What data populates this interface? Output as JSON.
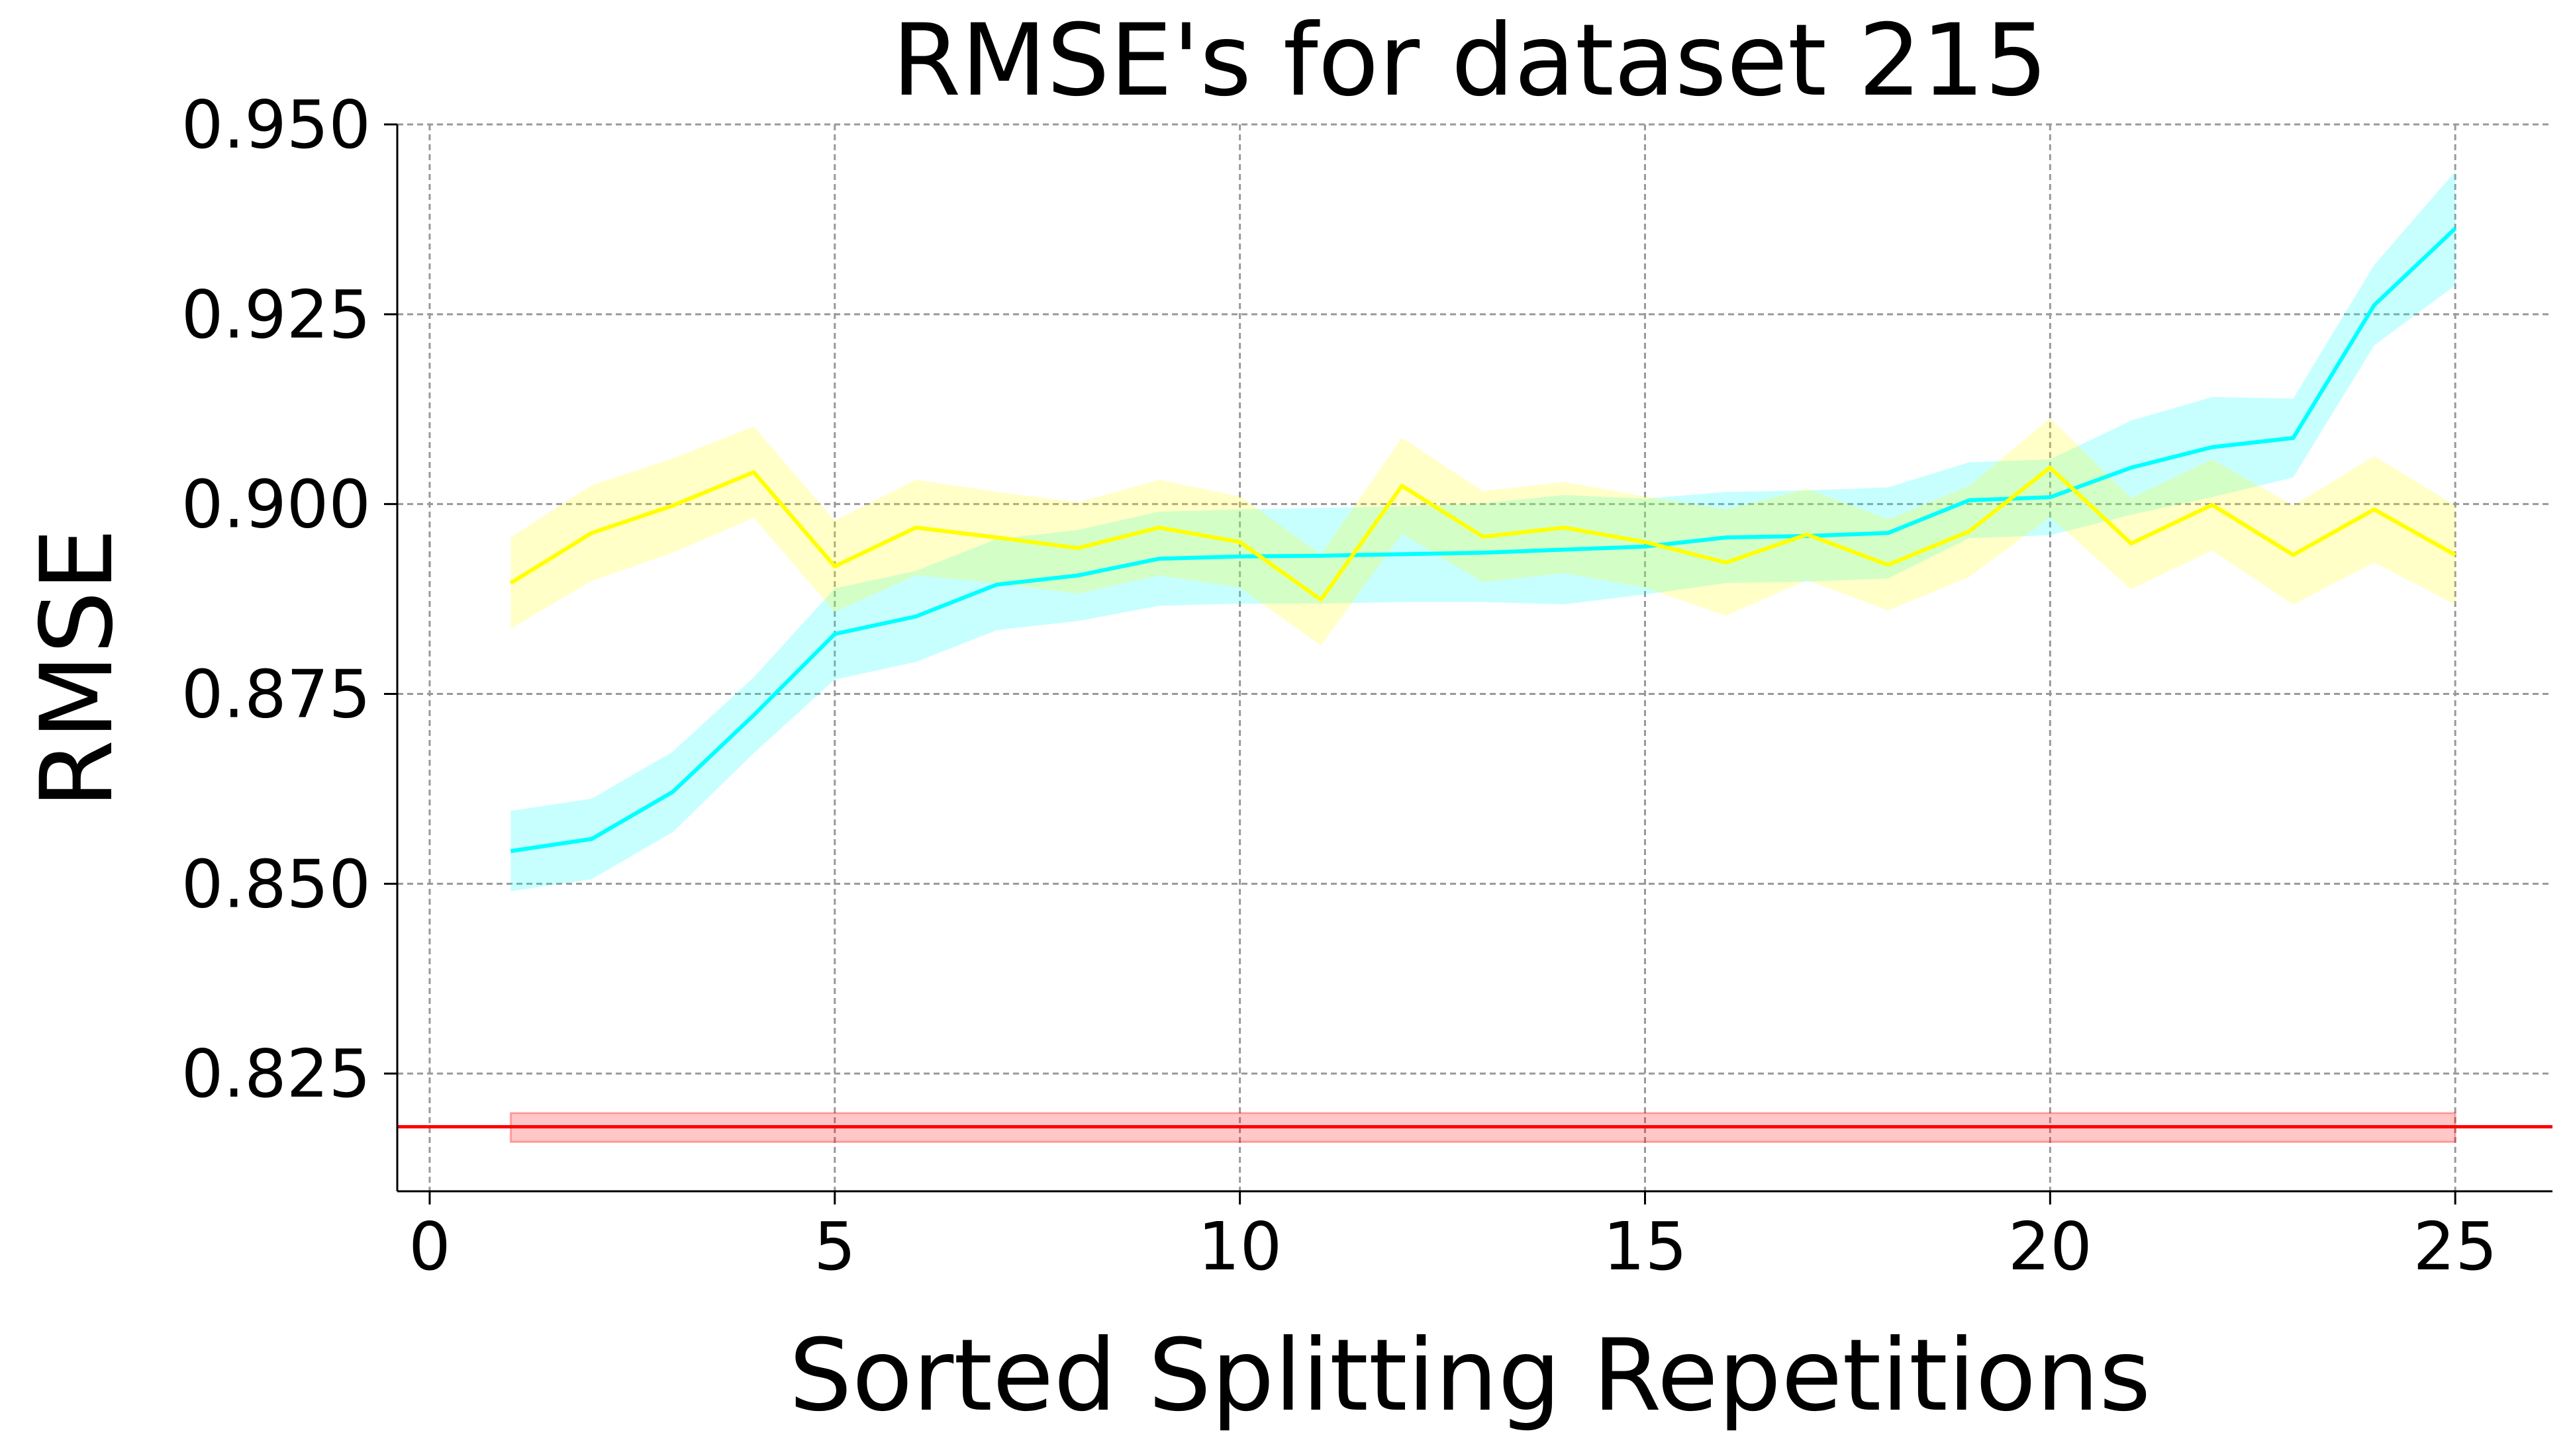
{
  "chart_data": {
    "type": "line",
    "title": "RMSE's for dataset 215",
    "xlabel": "Sorted Splitting Repetitions",
    "ylabel": "RMSE",
    "xlim": [
      -0.4,
      26.2
    ],
    "ylim": [
      0.8095,
      0.95
    ],
    "xticks": [
      0,
      5,
      10,
      15,
      20,
      25
    ],
    "xtick_labels": [
      "0",
      "5",
      "10",
      "15",
      "20",
      "25"
    ],
    "yticks": [
      0.825,
      0.85,
      0.875,
      0.9,
      0.925,
      0.95
    ],
    "ytick_labels": [
      "0.825",
      "0.850",
      "0.875",
      "0.900",
      "0.925",
      "0.950"
    ],
    "grid": true,
    "grid_style": "dashed",
    "x": [
      1,
      2,
      3,
      4,
      5,
      6,
      7,
      8,
      9,
      10,
      11,
      12,
      13,
      14,
      15,
      16,
      17,
      18,
      19,
      20,
      21,
      22,
      23,
      24,
      25
    ],
    "series": [
      {
        "color": "#00ffff",
        "values": [
          0.8543,
          0.8559,
          0.8621,
          0.8722,
          0.8829,
          0.8852,
          0.8894,
          0.8906,
          0.8928,
          0.8931,
          0.8932,
          0.8934,
          0.8936,
          0.894,
          0.8944,
          0.8956,
          0.8958,
          0.8962,
          0.9005,
          0.9009,
          0.9048,
          0.9075,
          0.9087,
          0.9262,
          0.9363
        ],
        "band_lower": [
          0.849,
          0.8506,
          0.8568,
          0.8672,
          0.8769,
          0.8792,
          0.8834,
          0.8846,
          0.8866,
          0.8869,
          0.8869,
          0.8871,
          0.8871,
          0.8868,
          0.8881,
          0.8896,
          0.8898,
          0.8902,
          0.8955,
          0.8959,
          0.8986,
          0.9009,
          0.9035,
          0.9209,
          0.9288
        ],
        "band_upper": [
          0.8596,
          0.8612,
          0.8674,
          0.8772,
          0.8889,
          0.8912,
          0.8954,
          0.8966,
          0.899,
          0.8993,
          0.8995,
          0.8997,
          0.9001,
          0.9012,
          0.9007,
          0.9016,
          0.9018,
          0.9022,
          0.9055,
          0.9059,
          0.911,
          0.9141,
          0.9139,
          0.9315,
          0.9438
        ]
      },
      {
        "color": "#ffff00",
        "values": [
          0.8896,
          0.8962,
          0.8998,
          0.9042,
          0.8918,
          0.8969,
          0.8956,
          0.8942,
          0.8969,
          0.895,
          0.8874,
          0.9024,
          0.8957,
          0.8969,
          0.895,
          0.8923,
          0.896,
          0.892,
          0.8964,
          0.9048,
          0.8948,
          0.8999,
          0.8933,
          0.8993,
          0.8933
        ],
        "band_lower": [
          0.8836,
          0.8899,
          0.8936,
          0.8982,
          0.8858,
          0.8906,
          0.8896,
          0.8882,
          0.8906,
          0.889,
          0.8814,
          0.8961,
          0.8897,
          0.8909,
          0.889,
          0.8853,
          0.89,
          0.886,
          0.8904,
          0.8983,
          0.8888,
          0.8939,
          0.8868,
          0.8923,
          0.8868
        ],
        "band_upper": [
          0.8956,
          0.9025,
          0.906,
          0.9102,
          0.8978,
          0.9032,
          0.9016,
          0.9002,
          0.9032,
          0.901,
          0.8934,
          0.9087,
          0.9017,
          0.9029,
          0.901,
          0.8993,
          0.902,
          0.898,
          0.9024,
          0.9113,
          0.9008,
          0.9059,
          0.8998,
          0.9063,
          0.8998
        ]
      }
    ],
    "reference_line": {
      "color": "#ff0000",
      "value": 0.818,
      "band_lower": 0.816,
      "band_upper": 0.8198,
      "band_x": [
        1,
        25
      ]
    }
  }
}
